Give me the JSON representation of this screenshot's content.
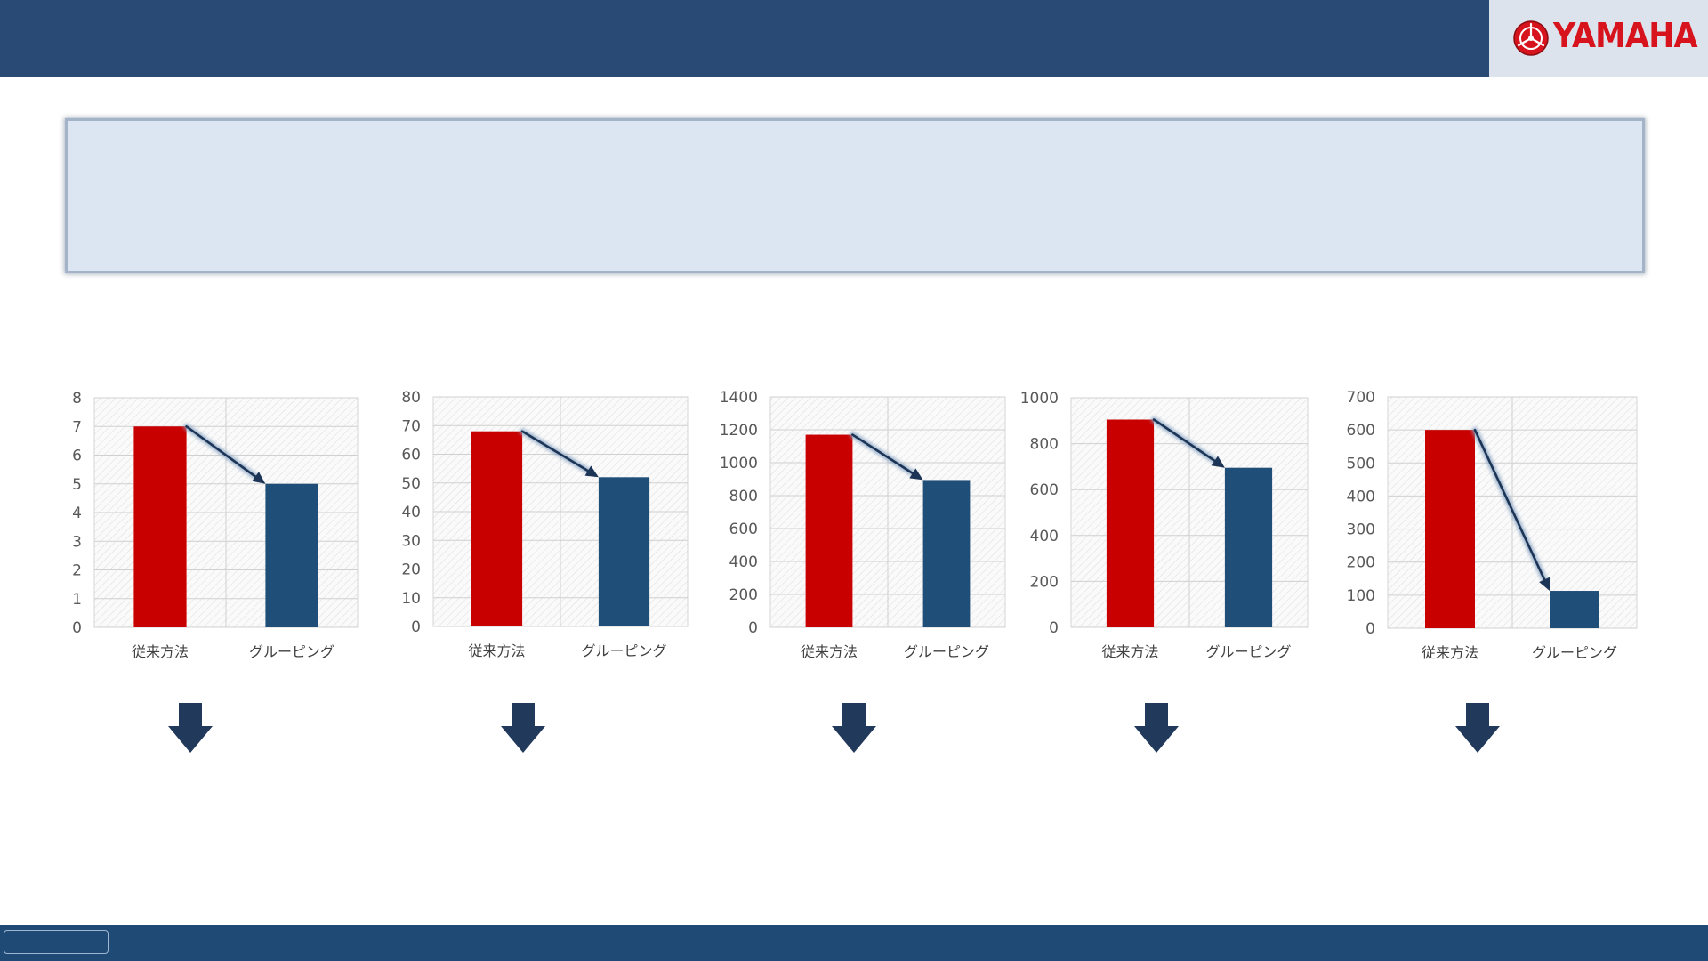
{
  "brand": {
    "logo_text": "YAMAHA",
    "logo_color": "#d7141d",
    "logo_icon": "tuning-fork-emblem-icon",
    "header_color": "#284a75",
    "footer_color": "#1f4a75"
  },
  "summary_box": {
    "fill": "#dce6f2",
    "text": ""
  },
  "arrow_icon": "down-arrow-icon",
  "chart_data": [
    {
      "type": "bar",
      "categories": [
        "従来方法",
        "グルーピング"
      ],
      "values": [
        7,
        5
      ],
      "colors": [
        "#c80000",
        "#1f4e79"
      ],
      "ylim": [
        0,
        8
      ],
      "ytick_values": [
        0,
        1,
        2,
        3,
        4,
        5,
        6,
        7,
        8
      ],
      "grid": true,
      "title": "",
      "xlabel": "",
      "ylabel": ""
    },
    {
      "type": "bar",
      "categories": [
        "従来方法",
        "グルーピング"
      ],
      "values": [
        68,
        52
      ],
      "colors": [
        "#c80000",
        "#1f4e79"
      ],
      "ylim": [
        0,
        80
      ],
      "ytick_values": [
        0,
        10,
        20,
        30,
        40,
        50,
        60,
        70,
        80
      ],
      "grid": true,
      "title": "",
      "xlabel": "",
      "ylabel": ""
    },
    {
      "type": "bar",
      "categories": [
        "従来方法",
        "グルーピング"
      ],
      "values": [
        1170,
        895
      ],
      "colors": [
        "#c80000",
        "#1f4e79"
      ],
      "ylim": [
        0,
        1400
      ],
      "ytick_values": [
        0,
        200,
        400,
        600,
        800,
        1000,
        1200,
        1400
      ],
      "grid": true,
      "title": "",
      "xlabel": "",
      "ylabel": ""
    },
    {
      "type": "bar",
      "categories": [
        "従来方法",
        "グルーピング"
      ],
      "values": [
        905,
        695
      ],
      "colors": [
        "#c80000",
        "#1f4e79"
      ],
      "ylim": [
        0,
        1000
      ],
      "ytick_values": [
        0,
        200,
        400,
        600,
        800,
        1000
      ],
      "grid": true,
      "title": "",
      "xlabel": "",
      "ylabel": ""
    },
    {
      "type": "bar",
      "categories": [
        "従来方法",
        "グルーピング"
      ],
      "values": [
        600,
        113
      ],
      "colors": [
        "#c80000",
        "#1f4e79"
      ],
      "ylim": [
        0,
        700
      ],
      "ytick_values": [
        0,
        100,
        200,
        300,
        400,
        500,
        600,
        700
      ],
      "grid": true,
      "title": "",
      "xlabel": "",
      "ylabel": ""
    }
  ]
}
